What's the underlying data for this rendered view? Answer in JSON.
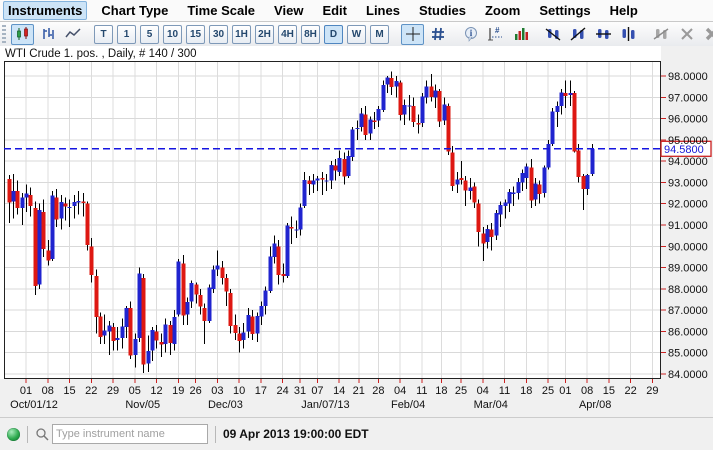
{
  "menu": {
    "items": [
      {
        "label": "Instruments",
        "selected": true
      },
      {
        "label": "Chart Type",
        "selected": false
      },
      {
        "label": "Time Scale",
        "selected": false
      },
      {
        "label": "View",
        "selected": false
      },
      {
        "label": "Edit",
        "selected": false
      },
      {
        "label": "Lines",
        "selected": false
      },
      {
        "label": "Studies",
        "selected": false
      },
      {
        "label": "Zoom",
        "selected": false
      },
      {
        "label": "Settings",
        "selected": false
      },
      {
        "label": "Help",
        "selected": false
      }
    ]
  },
  "toolbar": {
    "chart_types": [
      {
        "name": "candlestick",
        "selected": true
      },
      {
        "name": "ohlc-bars",
        "selected": false
      },
      {
        "name": "line-chart",
        "selected": false
      }
    ],
    "timeframes": [
      {
        "label": "T",
        "selected": false
      },
      {
        "label": "1",
        "selected": false
      },
      {
        "label": "5",
        "selected": false
      },
      {
        "label": "10",
        "selected": false
      },
      {
        "label": "15",
        "selected": false
      },
      {
        "label": "30",
        "selected": false
      },
      {
        "label": "1H",
        "selected": false
      },
      {
        "label": "2H",
        "selected": false
      },
      {
        "label": "4H",
        "selected": false
      },
      {
        "label": "8H",
        "selected": false
      },
      {
        "label": "D",
        "selected": true
      },
      {
        "label": "W",
        "selected": false
      },
      {
        "label": "M",
        "selected": false
      }
    ],
    "tools": [
      {
        "name": "crosshair",
        "selected": true
      },
      {
        "name": "grid",
        "selected": false
      },
      {
        "name": "info",
        "selected": false
      },
      {
        "name": "bar-measure",
        "selected": false
      },
      {
        "name": "volume",
        "selected": false
      },
      {
        "name": "trend-line",
        "selected": false
      },
      {
        "name": "trend-line-alt",
        "selected": false
      },
      {
        "name": "horizontal-line",
        "selected": false
      },
      {
        "name": "vertical-line",
        "selected": false
      },
      {
        "name": "edit-line",
        "disabled": true
      },
      {
        "name": "delete-line",
        "disabled": true
      },
      {
        "name": "delete-all-lines",
        "disabled": true
      },
      {
        "name": "print",
        "disabled": false
      },
      {
        "name": "pin",
        "disabled": false
      },
      {
        "name": "more",
        "disabled": false
      }
    ],
    "more_label": "»"
  },
  "chart": {
    "title": "WTI Crude 1. pos. , Daily, # 140 / 300",
    "last_price_label": "94.5800"
  },
  "chart_data": {
    "type": "candlestick",
    "title": "WTI Crude 1. pos. , Daily, # 140 / 300",
    "instrument": "WTI Crude 1. pos.",
    "interval": "Daily",
    "bar_count_label": "# 140 / 300",
    "ylim": [
      83.8,
      98.7
    ],
    "grid": true,
    "y_tick_labels": [
      "98.0000",
      "97.0000",
      "96.0000",
      "95.0000",
      "94.0000",
      "93.0000",
      "92.0000",
      "91.0000",
      "90.0000",
      "89.0000",
      "88.0000",
      "87.0000",
      "86.0000",
      "85.0000",
      "84.0000"
    ],
    "last_price": 94.58,
    "price_line": {
      "value": 94.58,
      "style": "dashed",
      "color": "#1515e0",
      "label": "94.5800",
      "label_color": "#1616d6",
      "label_border": "#cc2020"
    },
    "up_color": "#2024cf",
    "down_color": "#de1812",
    "wick_color": "#000000",
    "tick_color": "#cc2222",
    "x_week_ticks": [
      {
        "label": "01",
        "i": 4
      },
      {
        "label": "08",
        "i": 9
      },
      {
        "label": "15",
        "i": 14
      },
      {
        "label": "22",
        "i": 19
      },
      {
        "label": "29",
        "i": 24
      },
      {
        "label": "05",
        "i": 29
      },
      {
        "label": "12",
        "i": 34
      },
      {
        "label": "19",
        "i": 39
      },
      {
        "label": "26",
        "i": 43
      },
      {
        "label": "03",
        "i": 48
      },
      {
        "label": "10",
        "i": 53
      },
      {
        "label": "17",
        "i": 58
      },
      {
        "label": "24",
        "i": 63
      },
      {
        "label": "31",
        "i": 67
      },
      {
        "label": "07",
        "i": 71
      },
      {
        "label": "14",
        "i": 76
      },
      {
        "label": "21",
        "i": 80.5
      },
      {
        "label": "28",
        "i": 85
      },
      {
        "label": "04",
        "i": 90
      },
      {
        "label": "11",
        "i": 95
      },
      {
        "label": "18",
        "i": 99.5
      },
      {
        "label": "25",
        "i": 104
      },
      {
        "label": "04",
        "i": 109
      },
      {
        "label": "11",
        "i": 114
      },
      {
        "label": "18",
        "i": 119
      },
      {
        "label": "25",
        "i": 124
      },
      {
        "label": "01",
        "i": 128
      },
      {
        "label": "08",
        "i": 133
      },
      {
        "label": "15",
        "i": 138
      },
      {
        "label": "22",
        "i": 143
      },
      {
        "label": "29",
        "i": 148
      }
    ],
    "x_month_labels": [
      {
        "label": "Oct/01/12",
        "i": 4
      },
      {
        "label": "Nov/05",
        "i": 29
      },
      {
        "label": "Dec/03",
        "i": 48
      },
      {
        "label": "Jan/07/13",
        "i": 71
      },
      {
        "label": "Feb/04",
        "i": 90
      },
      {
        "label": "Mar/04",
        "i": 109
      },
      {
        "label": "Apr/08",
        "i": 133
      }
    ],
    "bars": [
      [
        93.15,
        93.35,
        91.1,
        92.05
      ],
      [
        92.1,
        93.4,
        91.3,
        92.6
      ],
      [
        92.6,
        93.1,
        91.5,
        91.8
      ],
      [
        91.8,
        92.5,
        91.0,
        92.3
      ],
      [
        92.3,
        92.9,
        91.6,
        92.48
      ],
      [
        92.4,
        92.75,
        91.4,
        91.89
      ],
      [
        91.8,
        92.1,
        87.7,
        88.14
      ],
      [
        88.2,
        92.0,
        88.0,
        91.71
      ],
      [
        91.6,
        92.2,
        89.5,
        89.88
      ],
      [
        89.8,
        90.3,
        89.1,
        89.33
      ],
      [
        89.4,
        92.6,
        89.3,
        92.39
      ],
      [
        92.3,
        92.7,
        90.9,
        91.25
      ],
      [
        91.3,
        92.4,
        90.8,
        92.07
      ],
      [
        92.0,
        92.3,
        91.2,
        91.86
      ],
      [
        91.8,
        92.2,
        90.9,
        91.85
      ],
      [
        91.9,
        92.4,
        91.3,
        92.09
      ],
      [
        92.1,
        92.6,
        91.5,
        92.12
      ],
      [
        92.1,
        92.5,
        91.4,
        92.05
      ],
      [
        92.0,
        92.1,
        89.8,
        90.05
      ],
      [
        90.0,
        90.4,
        88.3,
        88.65
      ],
      [
        88.6,
        88.9,
        85.9,
        86.67
      ],
      [
        86.7,
        86.9,
        85.4,
        85.73
      ],
      [
        85.8,
        86.8,
        85.4,
        86.05
      ],
      [
        86.0,
        86.5,
        84.9,
        86.28
      ],
      [
        86.2,
        86.4,
        85.1,
        85.54
      ],
      [
        85.6,
        86.2,
        85.1,
        85.68
      ],
      [
        85.7,
        86.6,
        85.2,
        86.24
      ],
      [
        86.2,
        87.2,
        85.7,
        87.09
      ],
      [
        87.1,
        87.4,
        84.7,
        84.86
      ],
      [
        84.9,
        85.9,
        84.3,
        85.65
      ],
      [
        85.7,
        89.0,
        85.5,
        88.71
      ],
      [
        88.5,
        88.7,
        84.05,
        84.44
      ],
      [
        84.5,
        85.8,
        84.1,
        85.09
      ],
      [
        85.1,
        86.2,
        84.6,
        86.07
      ],
      [
        86.0,
        86.3,
        85.2,
        85.57
      ],
      [
        85.5,
        85.9,
        84.8,
        85.38
      ],
      [
        85.4,
        86.6,
        85.0,
        86.32
      ],
      [
        86.3,
        86.5,
        84.9,
        85.45
      ],
      [
        85.4,
        87.0,
        85.1,
        86.67
      ],
      [
        86.8,
        89.4,
        86.7,
        89.28
      ],
      [
        89.2,
        89.6,
        86.3,
        86.75
      ],
      [
        86.8,
        87.6,
        86.3,
        87.38
      ],
      [
        87.4,
        88.4,
        87.1,
        88.28
      ],
      [
        88.2,
        88.3,
        87.3,
        87.74
      ],
      [
        87.7,
        88.0,
        86.8,
        87.18
      ],
      [
        87.1,
        87.3,
        85.4,
        86.49
      ],
      [
        86.5,
        88.2,
        86.4,
        88.07
      ],
      [
        88.0,
        89.1,
        87.8,
        88.91
      ],
      [
        88.9,
        89.8,
        88.6,
        89.09
      ],
      [
        89.0,
        89.3,
        88.2,
        88.5
      ],
      [
        88.5,
        88.7,
        87.2,
        87.88
      ],
      [
        87.8,
        88.0,
        85.9,
        86.26
      ],
      [
        86.3,
        86.8,
        85.6,
        85.93
      ],
      [
        85.9,
        86.2,
        85.0,
        85.56
      ],
      [
        85.6,
        86.4,
        85.2,
        85.95
      ],
      [
        86.0,
        87.1,
        85.7,
        86.77
      ],
      [
        86.7,
        87.0,
        85.6,
        85.89
      ],
      [
        85.9,
        86.9,
        85.5,
        86.73
      ],
      [
        86.7,
        87.4,
        86.3,
        87.2
      ],
      [
        87.2,
        88.1,
        86.8,
        87.93
      ],
      [
        87.9,
        90.0,
        87.8,
        89.51
      ],
      [
        89.5,
        90.5,
        89.2,
        90.13
      ],
      [
        90.0,
        90.3,
        88.2,
        88.66
      ],
      [
        88.7,
        89.2,
        88.3,
        88.61
      ],
      [
        88.6,
        91.1,
        88.5,
        90.98
      ],
      [
        90.9,
        91.4,
        90.1,
        90.87
      ],
      [
        90.8,
        91.2,
        90.4,
        90.8
      ],
      [
        90.8,
        92.0,
        90.5,
        91.82
      ],
      [
        91.9,
        93.5,
        91.8,
        93.12
      ],
      [
        93.1,
        93.3,
        92.4,
        92.92
      ],
      [
        92.9,
        93.4,
        92.5,
        93.09
      ],
      [
        93.1,
        93.3,
        92.6,
        93.19
      ],
      [
        93.2,
        93.5,
        92.4,
        93.15
      ],
      [
        93.1,
        93.4,
        92.6,
        93.1
      ],
      [
        93.1,
        94.0,
        92.7,
        93.82
      ],
      [
        93.8,
        94.1,
        93.1,
        93.56
      ],
      [
        93.5,
        94.5,
        93.3,
        94.14
      ],
      [
        94.1,
        94.4,
        92.9,
        93.28
      ],
      [
        93.3,
        94.5,
        93.2,
        94.24
      ],
      [
        94.2,
        95.6,
        94.0,
        95.49
      ],
      [
        95.5,
        95.9,
        95.0,
        95.56
      ],
      [
        95.6,
        96.5,
        95.4,
        96.24
      ],
      [
        96.2,
        96.6,
        95.0,
        95.23
      ],
      [
        95.3,
        96.1,
        95.0,
        95.95
      ],
      [
        95.9,
        96.3,
        95.5,
        95.88
      ],
      [
        95.9,
        96.6,
        95.6,
        96.44
      ],
      [
        96.4,
        97.8,
        96.3,
        97.57
      ],
      [
        97.6,
        98.0,
        97.2,
        97.94
      ],
      [
        97.9,
        98.2,
        97.1,
        97.49
      ],
      [
        97.5,
        98.0,
        97.0,
        97.77
      ],
      [
        97.7,
        97.8,
        95.9,
        96.17
      ],
      [
        96.2,
        96.9,
        95.7,
        96.64
      ],
      [
        96.6,
        97.1,
        95.9,
        96.62
      ],
      [
        96.6,
        97.0,
        95.6,
        95.83
      ],
      [
        95.8,
        96.2,
        95.3,
        95.72
      ],
      [
        95.8,
        97.2,
        95.6,
        97.03
      ],
      [
        97.0,
        97.8,
        96.7,
        97.51
      ],
      [
        97.5,
        98.1,
        96.8,
        97.01
      ],
      [
        97.0,
        97.6,
        96.5,
        97.31
      ],
      [
        97.3,
        97.4,
        95.6,
        95.86
      ],
      [
        95.9,
        97.0,
        95.7,
        96.66
      ],
      [
        96.6,
        96.7,
        94.3,
        94.46
      ],
      [
        94.4,
        94.7,
        92.6,
        92.84
      ],
      [
        92.9,
        93.5,
        92.5,
        93.13
      ],
      [
        93.2,
        94.0,
        92.9,
        93.11
      ],
      [
        93.1,
        93.3,
        91.9,
        92.63
      ],
      [
        92.6,
        93.2,
        92.2,
        92.76
      ],
      [
        92.8,
        93.0,
        91.8,
        92.05
      ],
      [
        92.0,
        92.2,
        90.0,
        90.68
      ],
      [
        90.6,
        90.9,
        89.3,
        90.12
      ],
      [
        90.2,
        91.0,
        89.9,
        90.82
      ],
      [
        90.8,
        91.1,
        89.8,
        90.43
      ],
      [
        90.5,
        91.7,
        90.3,
        91.56
      ],
      [
        91.5,
        92.1,
        90.9,
        91.95
      ],
      [
        91.9,
        92.2,
        91.3,
        92.06
      ],
      [
        92.0,
        92.7,
        91.6,
        92.54
      ],
      [
        92.5,
        92.8,
        91.9,
        92.52
      ],
      [
        92.5,
        93.2,
        92.2,
        93.03
      ],
      [
        93.0,
        93.6,
        92.6,
        93.45
      ],
      [
        93.2,
        93.9,
        92.7,
        93.74
      ],
      [
        93.7,
        94.1,
        91.8,
        92.16
      ],
      [
        92.2,
        93.2,
        91.9,
        92.96
      ],
      [
        92.9,
        93.1,
        92.0,
        92.45
      ],
      [
        92.5,
        93.8,
        92.3,
        93.71
      ],
      [
        93.7,
        95.0,
        93.6,
        94.81
      ],
      [
        94.8,
        96.5,
        94.7,
        96.34
      ],
      [
        96.3,
        96.8,
        95.6,
        96.58
      ],
      [
        96.6,
        97.4,
        96.2,
        97.23
      ],
      [
        97.2,
        97.8,
        96.5,
        97.07
      ],
      [
        97.1,
        97.8,
        96.6,
        97.19
      ],
      [
        97.2,
        97.3,
        94.4,
        94.45
      ],
      [
        94.5,
        94.8,
        93.0,
        93.26
      ],
      [
        93.3,
        93.4,
        91.7,
        92.7
      ],
      [
        92.7,
        93.4,
        92.4,
        93.36
      ],
      [
        93.4,
        94.8,
        93.3,
        94.58
      ]
    ]
  },
  "statusbar": {
    "status_icon": "green-sphere",
    "search_placeholder": "Type instrument name",
    "time": "09 Apr 2013 19:00:00 EDT"
  }
}
